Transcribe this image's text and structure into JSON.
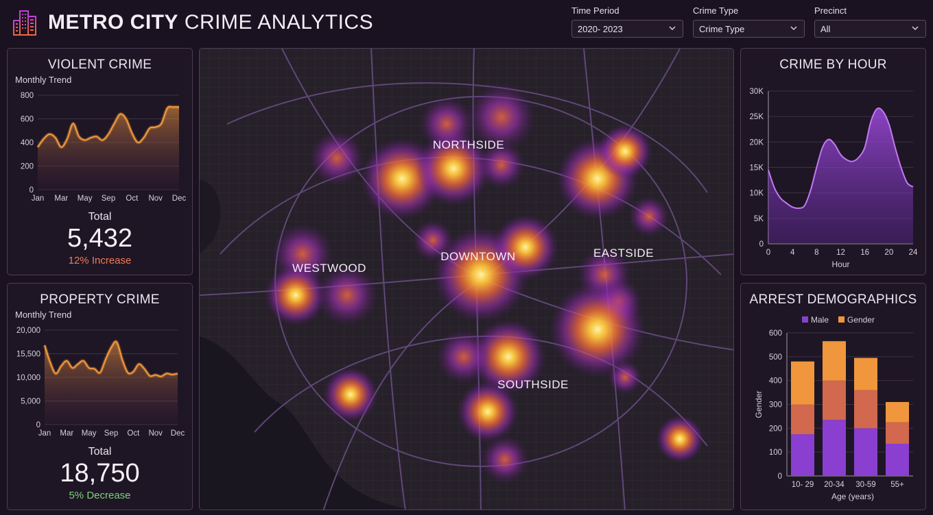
{
  "header": {
    "title_bold": "METRO CITY",
    "title_light": "CRIME ANALYTICS",
    "logo_icon": "city-buildings-icon"
  },
  "filters": [
    {
      "label": "Time Period",
      "value": "2020- 2023"
    },
    {
      "label": "Crime Type",
      "value": "Crime Type"
    },
    {
      "label": "Precinct",
      "value": "All"
    }
  ],
  "violent": {
    "title": "VIOLENT CRIME",
    "subtitle": "Monthly Trend",
    "total_label": "Total",
    "total_value": "5,432",
    "delta": "12% Increase",
    "delta_color": "#f07a56"
  },
  "property": {
    "title": "PROPERTY CRIME",
    "subtitle": "Monthly Trend",
    "total_label": "Total",
    "total_value": "18,750",
    "delta": "5% Decrease",
    "delta_color": "#7ed27a"
  },
  "hour_panel": {
    "title": "CRIME BY HOUR"
  },
  "demo_panel": {
    "title": "ARREST DEMOGRAPHICS"
  },
  "map": {
    "labels": [
      {
        "id": "northside",
        "text": "NORTHSIDE"
      },
      {
        "id": "westwood",
        "text": "WESTWOOD"
      },
      {
        "id": "downtown",
        "text": "DOWNTOWN"
      },
      {
        "id": "eastside",
        "text": "EASTSIDE"
      },
      {
        "id": "southside",
        "text": "SOUTHSIDE"
      }
    ]
  },
  "colors": {
    "accent_orange": "#f59a3c",
    "accent_purple": "#a04be0",
    "panel_border": "#4b3f54"
  },
  "chart_data": [
    {
      "id": "violent",
      "type": "area",
      "xlabel": "",
      "ylabel": "",
      "x_ticks": [
        "Jan",
        "Mar",
        "May",
        "Sep",
        "Oct",
        "Nov",
        "Dec"
      ],
      "y_ticks": [
        "0",
        "200",
        "400",
        "600",
        "800"
      ],
      "ylim": [
        0,
        800
      ],
      "grid": true,
      "x": [
        0,
        0.5,
        1,
        1.5,
        2,
        2.5,
        3,
        3.5,
        4,
        4.5,
        5,
        5.5,
        6,
        6.5,
        7,
        7.5,
        8,
        8.5,
        9,
        9.5,
        10,
        10.5,
        11,
        11.5,
        12
      ],
      "values": [
        360,
        430,
        470,
        440,
        360,
        430,
        560,
        450,
        420,
        440,
        450,
        420,
        470,
        560,
        640,
        600,
        480,
        400,
        440,
        520,
        530,
        560,
        690,
        700,
        700
      ]
    },
    {
      "id": "property",
      "type": "area",
      "xlabel": "",
      "ylabel": "",
      "x_ticks": [
        "Jan",
        "Mar",
        "May",
        "Sep",
        "Oct",
        "Nov",
        "Dec"
      ],
      "y_ticks": [
        "0",
        "5,000",
        "10,000",
        "15,500",
        "20,000"
      ],
      "ylim": [
        0,
        20000
      ],
      "grid": true,
      "x": [
        0,
        0.5,
        1,
        1.5,
        2,
        2.5,
        3,
        3.5,
        4,
        4.5,
        5,
        5.5,
        6,
        6.5,
        7,
        7.5,
        8,
        8.5,
        9,
        9.5,
        10,
        10.5,
        11,
        11.5,
        12
      ],
      "values": [
        16800,
        13200,
        10800,
        12400,
        13500,
        12000,
        12800,
        13500,
        12000,
        11800,
        11000,
        13800,
        16300,
        17500,
        13800,
        11000,
        11200,
        12800,
        11800,
        10300,
        10500,
        10200,
        10800,
        10600,
        10800
      ]
    },
    {
      "id": "hour",
      "type": "area",
      "xlabel": "Hour",
      "ylabel": "",
      "x_ticks": [
        0,
        4,
        8,
        12,
        16,
        20,
        24
      ],
      "y_ticks": [
        "0",
        "5K",
        "10K",
        "15K",
        "20K",
        "25K",
        "30K"
      ],
      "ylim": [
        0,
        30000
      ],
      "xlim": [
        0,
        24
      ],
      "grid": true,
      "x": [
        0,
        1,
        2,
        3,
        4,
        5,
        6,
        7,
        8,
        9,
        10,
        11,
        12,
        13,
        14,
        15,
        16,
        17,
        18,
        19,
        20,
        21,
        22,
        23,
        24
      ],
      "values": [
        14500,
        11000,
        9000,
        8000,
        7200,
        7000,
        7500,
        10500,
        15000,
        19000,
        20500,
        19500,
        17500,
        16500,
        16200,
        17000,
        19000,
        24000,
        26500,
        26000,
        23500,
        19000,
        15000,
        12000,
        11200
      ]
    },
    {
      "id": "demographics",
      "type": "bar",
      "stacked": true,
      "xlabel": "Age (years)",
      "ylabel": "Gender",
      "legend_placement": "top",
      "categories": [
        "10- 29",
        "20-34",
        "30-59",
        "55+"
      ],
      "y_ticks": [
        0,
        100,
        200,
        300,
        400,
        500,
        600
      ],
      "ylim": [
        0,
        600
      ],
      "legend": [
        {
          "name": "Male",
          "color": "#8a3fd0"
        },
        {
          "name": "Gender",
          "color": "#f0963c"
        }
      ],
      "series": [
        {
          "values": [
            175,
            235,
            200,
            135
          ],
          "color": "#8a3fd0"
        },
        {
          "values": [
            125,
            165,
            160,
            90
          ],
          "color": "#d2684e"
        },
        {
          "values": [
            180,
            165,
            135,
            85
          ],
          "color": "#f0963c"
        }
      ]
    }
  ]
}
